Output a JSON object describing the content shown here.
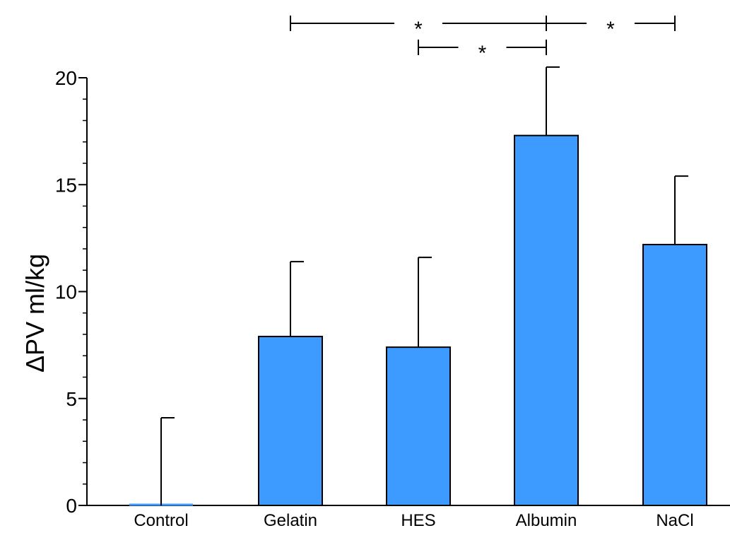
{
  "chart_data": {
    "type": "bar",
    "ylabel": "ΔPV ml/kg",
    "xlabel": "",
    "ylim": [
      0,
      20
    ],
    "yticks": [
      0,
      5,
      10,
      15,
      20
    ],
    "categories": [
      "Control",
      "Gelatin",
      "HES",
      "Albumin",
      "NaCl"
    ],
    "values": [
      0,
      7.9,
      7.4,
      17.3,
      12.2
    ],
    "error_upper": [
      4.1,
      3.5,
      4.2,
      3.2,
      3.2
    ],
    "bar_color": "#3d9bff",
    "significance": [
      {
        "from": "Gelatin",
        "to": "Albumin",
        "label": "*"
      },
      {
        "from": "HES",
        "to": "Albumin",
        "label": "*"
      },
      {
        "from": "Albumin",
        "to": "NaCl",
        "label": "*"
      }
    ]
  }
}
